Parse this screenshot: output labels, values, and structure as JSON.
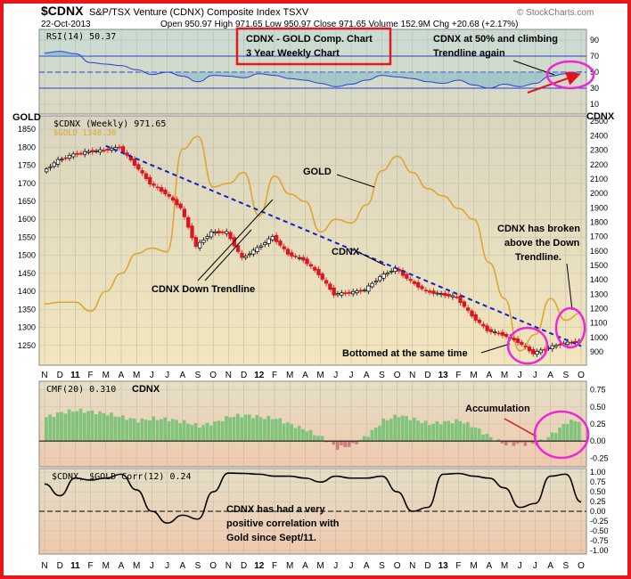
{
  "header": {
    "symbol": "$CDNX",
    "exchange_desc": "S&P/TSX Venture (CDNX) Composite Index TSXV",
    "date": "22-Oct-2013",
    "quote": "Open 950.97  High 971.65  Low 950.97  Close 971.65  Volume 152.9M  Chg +20.68 (+2.17%)",
    "watermark": "© StockCharts.com"
  },
  "rsi_panel": {
    "label": "RSI(14) 50.37",
    "ticks": [
      "90",
      "70",
      "50",
      "30",
      "10"
    ]
  },
  "main_panel": {
    "left_axis_title": "GOLD",
    "right_axis_title": "CDNX",
    "legend_cdnx": "$CDNX (Weekly) 971.65",
    "legend_gold": "$GOLD 1340.30",
    "gold_ticks": [
      "1850",
      "1800",
      "1750",
      "1700",
      "1650",
      "1600",
      "1550",
      "1500",
      "1450",
      "1400",
      "1350",
      "1300",
      "1250"
    ],
    "cdnx_ticks": [
      "2500",
      "2400",
      "2300",
      "2200",
      "2100",
      "2000",
      "1900",
      "1800",
      "1700",
      "1600",
      "1500",
      "1400",
      "1300",
      "1200",
      "1100",
      "1000",
      "900"
    ]
  },
  "cmf_panel": {
    "label": "CMF(20) 0.310",
    "title": "CDNX",
    "ticks": [
      "0.75",
      "0.50",
      "0.25",
      "0.00",
      "-0.25"
    ]
  },
  "corr_panel": {
    "label": "$CDNX, $GOLD Corr(12) 0.24",
    "ticks": [
      "1.00",
      "0.75",
      "0.50",
      "0.25",
      "0.00",
      "-0.25",
      "-0.50",
      "-0.75",
      "-1.00"
    ]
  },
  "x_axis_months": [
    "N",
    "D",
    "11",
    "F",
    "M",
    "A",
    "M",
    "J",
    "J",
    "A",
    "S",
    "O",
    "N",
    "D",
    "12",
    "F",
    "M",
    "A",
    "M",
    "J",
    "J",
    "A",
    "S",
    "O",
    "N",
    "D",
    "13",
    "F",
    "M",
    "A",
    "M",
    "J",
    "J",
    "A",
    "S",
    "O"
  ],
  "annotations": {
    "title_box": [
      "CDNX - GOLD Comp. Chart",
      "3 Year Weekly Chart"
    ],
    "rsi_note": [
      "CDNX at 50% and climbing",
      "Trendline again"
    ],
    "gold": "GOLD",
    "cdnx": "CDNX",
    "down_trendline": "CDNX Down Trendline",
    "breakout": [
      "CDNX has broken",
      "above the  Down",
      "Trendline."
    ],
    "bottomed": "Bottomed at the same time",
    "accumulation": "Accumulation",
    "correlation": [
      "CDNX has had a very",
      "positive correlation with",
      "Gold since Sept/11."
    ]
  },
  "colors": {
    "frame": "#e8171c",
    "cdnx_up": "#000000",
    "cdnx_down": "#e0141e",
    "gold_line": "#dca632",
    "trendline": "#1420c8",
    "rsi_line": "#2a3fd2",
    "cmf_positive": "#7fc47a",
    "cmf_negative": "#c87f7a",
    "highlight_circle": "#ec28d6"
  },
  "chart_data": {
    "type": "line",
    "title": "CDNX - GOLD Comp. Chart",
    "x": [
      "2010-11",
      "2010-12",
      "2011-01",
      "2011-02",
      "2011-03",
      "2011-04",
      "2011-05",
      "2011-06",
      "2011-07",
      "2011-08",
      "2011-09",
      "2011-10",
      "2011-11",
      "2011-12",
      "2012-01",
      "2012-02",
      "2012-03",
      "2012-04",
      "2012-05",
      "2012-06",
      "2012-07",
      "2012-08",
      "2012-09",
      "2012-10",
      "2012-11",
      "2012-12",
      "2013-01",
      "2013-02",
      "2013-03",
      "2013-04",
      "2013-05",
      "2013-06",
      "2013-07",
      "2013-08",
      "2013-09",
      "2013-10"
    ],
    "series": [
      {
        "name": "$CDNX (Weekly)",
        "axis": "right",
        "values": [
          2150,
          2230,
          2270,
          2290,
          2300,
          2320,
          2200,
          2070,
          2000,
          1900,
          1630,
          1730,
          1730,
          1550,
          1620,
          1700,
          1580,
          1540,
          1440,
          1300,
          1310,
          1330,
          1420,
          1480,
          1390,
          1320,
          1300,
          1280,
          1150,
          1050,
          1020,
          970,
          890,
          930,
          960,
          971.65
        ]
      },
      {
        "name": "$GOLD",
        "axis": "left",
        "values": [
          1365,
          1370,
          1370,
          1345,
          1400,
          1450,
          1505,
          1520,
          1510,
          1795,
          1830,
          1690,
          1700,
          1730,
          1610,
          1720,
          1670,
          1650,
          1565,
          1600,
          1590,
          1640,
          1735,
          1775,
          1730,
          1685,
          1665,
          1630,
          1600,
          1480,
          1380,
          1235,
          1280,
          1380,
          1320,
          1340.3
        ]
      },
      {
        "name": "CMF(20)",
        "axis": "cmf",
        "values": [
          0.35,
          0.42,
          0.45,
          0.43,
          0.4,
          0.35,
          0.3,
          0.33,
          0.32,
          0.28,
          0.22,
          0.27,
          0.36,
          0.38,
          0.35,
          0.33,
          0.24,
          0.16,
          0.05,
          -0.1,
          -0.06,
          0.09,
          0.3,
          0.38,
          0.32,
          0.25,
          0.28,
          0.3,
          0.2,
          0.05,
          -0.05,
          -0.04,
          -0.04,
          0.1,
          0.28,
          0.31
        ]
      },
      {
        "name": "$CDNX, $GOLD Corr(12)",
        "axis": "corr",
        "values": [
          0.7,
          0.4,
          0.85,
          0.8,
          0.85,
          0.95,
          0.55,
          0.0,
          -0.3,
          -0.1,
          -0.2,
          0.5,
          0.98,
          0.97,
          0.95,
          0.9,
          0.9,
          0.85,
          0.75,
          0.9,
          0.85,
          0.85,
          0.9,
          0.5,
          0.0,
          0.1,
          0.95,
          0.97,
          0.9,
          0.85,
          0.6,
          0.1,
          0.2,
          0.9,
          0.95,
          0.24
        ]
      },
      {
        "name": "RSI(14)",
        "axis": "rsi",
        "values": [
          74,
          76,
          73,
          62,
          60,
          58,
          53,
          47,
          50,
          45,
          38,
          46,
          45,
          43,
          48,
          46,
          42,
          40,
          36,
          32,
          35,
          40,
          46,
          44,
          42,
          38,
          36,
          40,
          34,
          30,
          35,
          32,
          36,
          45,
          48,
          50.37
        ]
      }
    ],
    "gold_ylim": [
      1200,
      1880
    ],
    "cdnx_ylim": [
      820,
      2520
    ],
    "rsi_ylim": [
      0,
      100
    ],
    "cmf_ylim": [
      -0.35,
      0.85
    ],
    "corr_ylim": [
      -1.05,
      1.05
    ]
  }
}
